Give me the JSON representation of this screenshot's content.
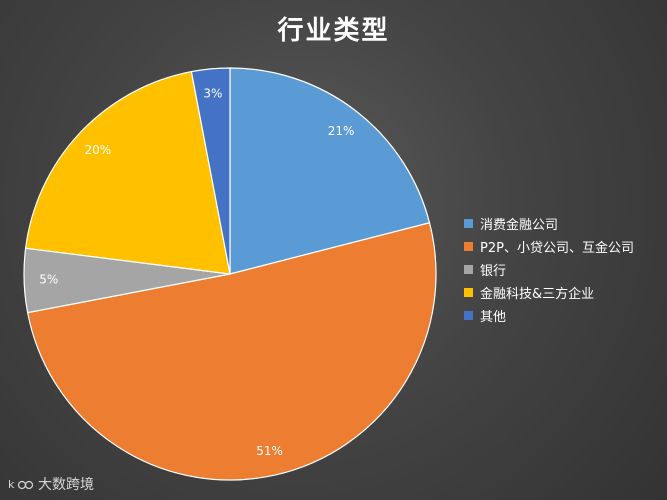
{
  "chart_data": {
    "type": "pie",
    "title": "行业类型",
    "categories": [
      "消费金融公司",
      "P2P、小贷公司、互金公司",
      "银行",
      "金融科技&三方企业",
      "其他"
    ],
    "values": [
      21,
      51,
      5,
      20,
      3
    ],
    "data_labels": [
      "21%",
      "51%",
      "5%",
      "20%",
      "3%"
    ],
    "colors": [
      "#5b9bd5",
      "#ed7d31",
      "#a5a5a5",
      "#ffc000",
      "#4472c4"
    ],
    "legend_position": "right"
  },
  "watermark": {
    "text": "大数跨境"
  }
}
